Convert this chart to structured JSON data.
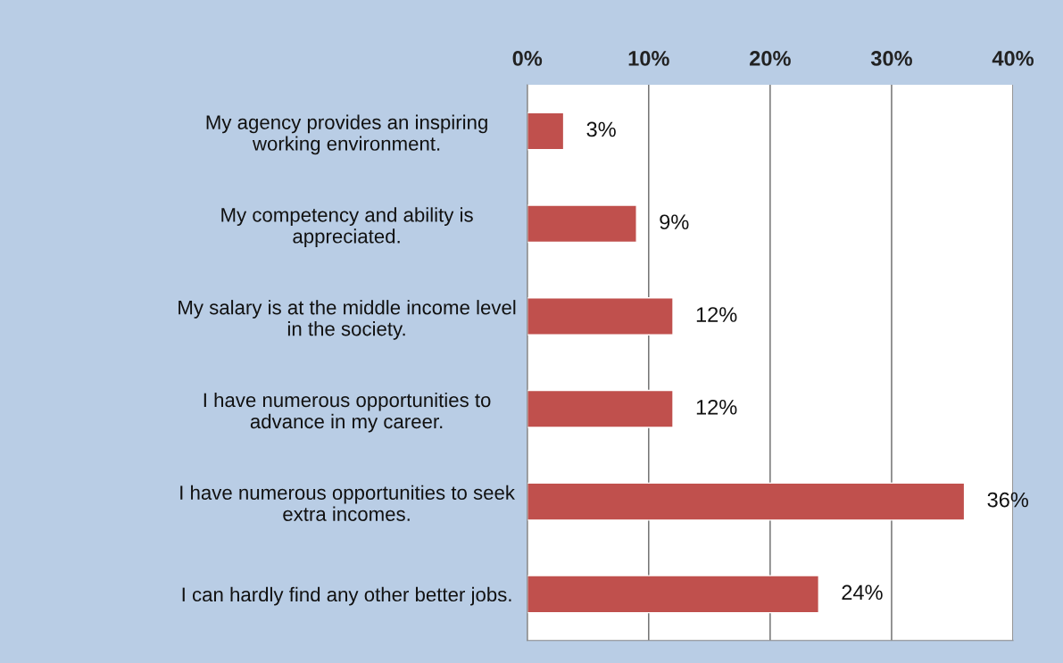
{
  "chart_data": {
    "type": "bar",
    "orientation": "horizontal",
    "categories": [
      "My agency provides an inspiring\nworking environment.",
      "My competency and ability is\nappreciated.",
      "My salary is at the middle income level\nin the society.",
      "I have numerous opportunities to\nadvance in my career.",
      "I have numerous opportunities to seek\nextra incomes.",
      "I can hardly find any other better jobs."
    ],
    "values": [
      3,
      9,
      12,
      12,
      36,
      24
    ],
    "value_labels": [
      "3%",
      "9%",
      "12%",
      "12%",
      "36%",
      "24%"
    ],
    "color": "#c0504d",
    "xlim": [
      0,
      40
    ],
    "xticks": [
      {
        "value": 0,
        "label": "0%"
      },
      {
        "value": 10,
        "label": "10%"
      },
      {
        "value": 20,
        "label": "20%"
      },
      {
        "value": 30,
        "label": "30%"
      },
      {
        "value": 40,
        "label": "40%"
      }
    ],
    "grid": "x",
    "legend": false
  }
}
